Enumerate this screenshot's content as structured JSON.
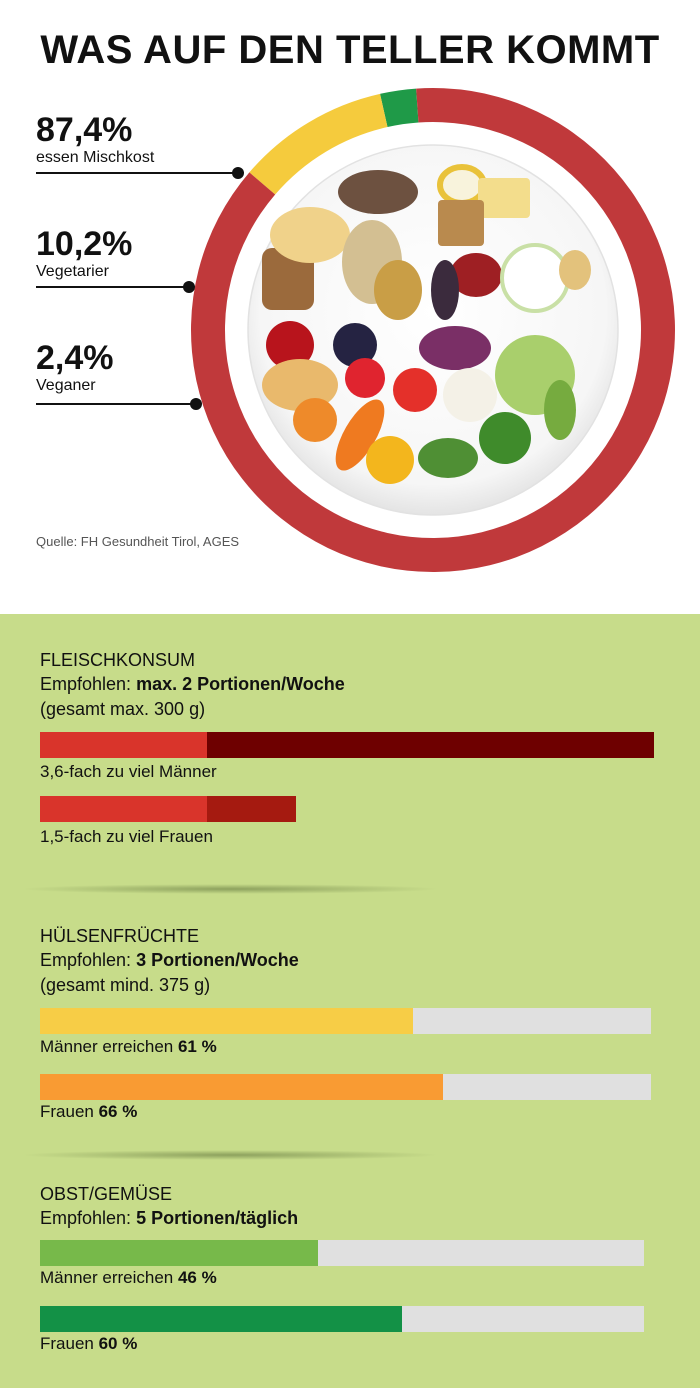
{
  "title": "WAS AUF DEN TELLER KOMMT",
  "stats": [
    {
      "value": "87,4%",
      "label": "essen Mischkost",
      "color": "#c0393b"
    },
    {
      "value": "10,2%",
      "label": "Vegetarier",
      "color": "#f5cb3d"
    },
    {
      "value": "2,4%",
      "label": "Veganer",
      "color": "#1f9a48"
    }
  ],
  "source": "Quelle: FH Gesundheit Tirol, AGES",
  "chart_data": [
    {
      "type": "pie",
      "title": "WAS AUF DEN TELLER KOMMT",
      "categories": [
        "essen Mischkost",
        "Vegetarier",
        "Veganer"
      ],
      "values": [
        87.4,
        10.2,
        2.4
      ],
      "colors": [
        "#c0393b",
        "#f5cb3d",
        "#1f9a48"
      ]
    },
    {
      "type": "bar",
      "title": "FLEISCHKONSUM",
      "categories": [
        "Männer",
        "Frauen"
      ],
      "values": [
        3.6,
        1.5
      ],
      "recommended": 1,
      "unit": "fach"
    },
    {
      "type": "bar",
      "title": "HÜLSENFRÜCHTE",
      "categories": [
        "Männer",
        "Frauen"
      ],
      "values": [
        61,
        66
      ],
      "unit": "%",
      "ylim": [
        0,
        100
      ]
    },
    {
      "type": "bar",
      "title": "OBST/GEMÜSE",
      "categories": [
        "Männer",
        "Frauen"
      ],
      "values": [
        46,
        60
      ],
      "unit": "%",
      "ylim": [
        0,
        100
      ]
    }
  ],
  "sections": {
    "meat": {
      "title": "FLEISCHKONSUM",
      "rec_prefix": "Empfohlen: ",
      "rec_value": "max. 2 Portionen/Woche",
      "note": "(gesamt max. 300 g)",
      "men_label": "3,6-fach zu viel Männer",
      "women_label": "1,5-fach zu viel Frauen",
      "colors": {
        "base": "#d9342b",
        "men_excess": "#6e0000",
        "women_excess": "#a51a10"
      }
    },
    "legumes": {
      "title": "HÜLSENFRÜCHTE",
      "rec_prefix": "Empfohlen: ",
      "rec_value": "3 Portionen/Woche",
      "note": "(gesamt mind. 375 g)",
      "men_prefix": "Männer erreichen ",
      "men_value": "61 %",
      "women_prefix": "Frauen ",
      "women_value": "66 %",
      "colors": {
        "men": "#f7cd46",
        "women": "#f99b33"
      }
    },
    "fruit": {
      "title": "OBST/GEMÜSE",
      "rec_prefix": "Empfohlen: ",
      "rec_value": "5 Portionen/täglich",
      "men_prefix": "Männer erreichen ",
      "men_value": "46 %",
      "women_prefix": "Frauen ",
      "women_value": "60 %",
      "colors": {
        "men": "#77b94a",
        "women": "#139146"
      }
    }
  }
}
